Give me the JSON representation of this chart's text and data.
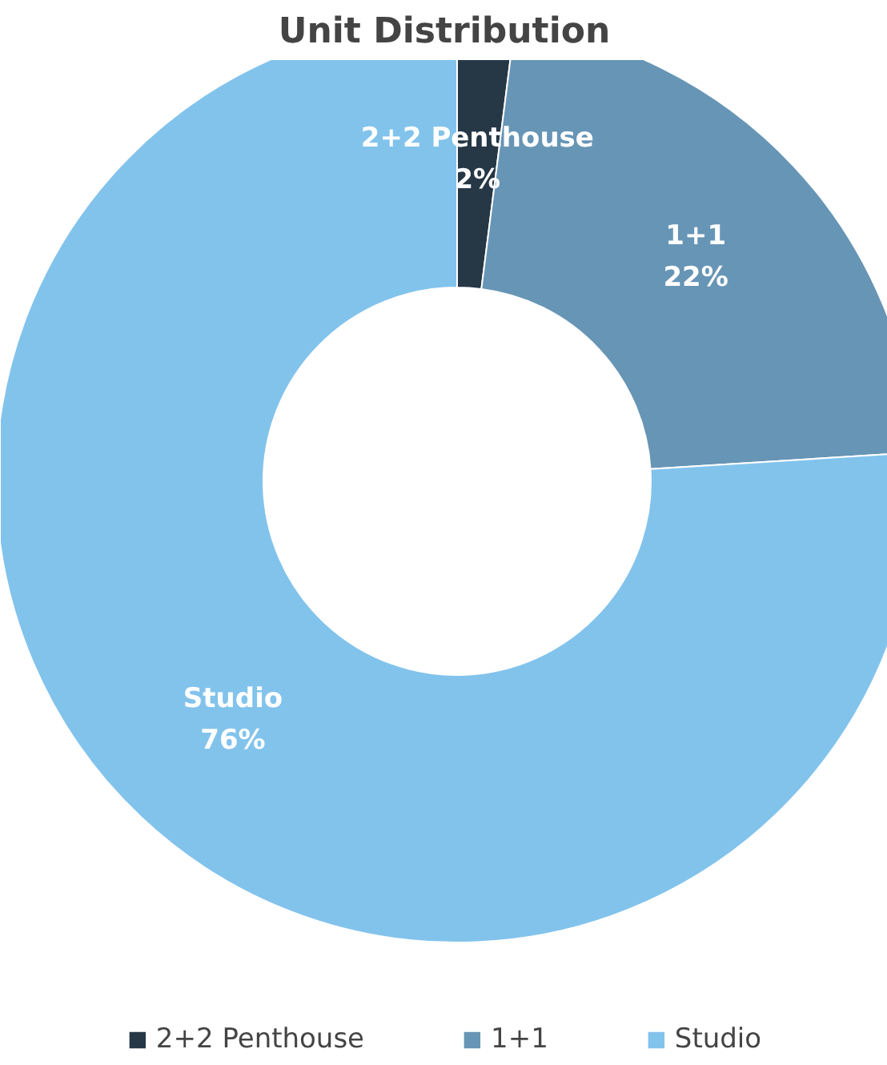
{
  "chart_data": {
    "type": "donut",
    "title": "Unit Distribution",
    "categories": [
      "2+2 Penthouse",
      "1+1",
      "Studio"
    ],
    "values": [
      2,
      22,
      76
    ],
    "colors": [
      "#263746",
      "#6795b5",
      "#82c3ec"
    ],
    "value_labels": [
      "2%",
      "22%",
      "76%"
    ],
    "legend": "bottom"
  }
}
